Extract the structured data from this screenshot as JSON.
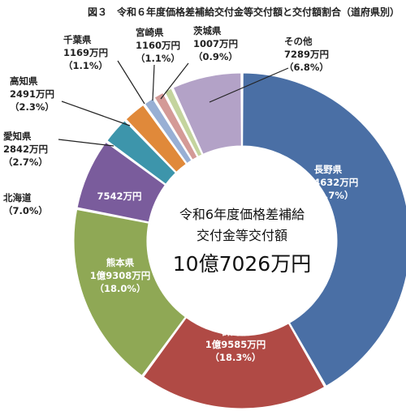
{
  "chart_data": {
    "type": "pie",
    "title": "図３　令和６年度価格差補給交付金等交付額と交付額割合（道府県別）",
    "center_label_line1": "令和6年度価格差補給",
    "center_label_line2": "交付金等交付額",
    "total": "10億7026万円",
    "slices": [
      {
        "name": "長野県",
        "amount": "4億4632万円",
        "percent_label": "（41.7%）",
        "value": 41.7,
        "color": "#4a6fa5"
      },
      {
        "name": "群馬県",
        "amount": "1億9585万円",
        "percent_label": "（18.3%）",
        "value": 18.3,
        "color": "#b04a45"
      },
      {
        "name": "熊本県",
        "amount": "1億9308万円",
        "percent_label": "（18.0%）",
        "value": 18.0,
        "color": "#8fa855"
      },
      {
        "name": "北海道",
        "amount": "7542万円",
        "percent_label": "（7.0%）",
        "value": 7.0,
        "color": "#7a5c9c"
      },
      {
        "name": "愛知県",
        "amount": "2842万円",
        "percent_label": "（2.7%）",
        "value": 2.7,
        "color": "#3d95ab"
      },
      {
        "name": "高知県",
        "amount": "2491万円",
        "percent_label": "（2.3%）",
        "value": 2.3,
        "color": "#e0893a"
      },
      {
        "name": "千葉県",
        "amount": "1169万円",
        "percent_label": "（1.1%）",
        "value": 1.1,
        "color": "#98afd4"
      },
      {
        "name": "宮崎県",
        "amount": "1160万円",
        "percent_label": "（1.1%）",
        "value": 1.1,
        "color": "#d49a97"
      },
      {
        "name": "茨城県",
        "amount": "1007万円",
        "percent_label": "（0.9%）",
        "value": 0.9,
        "color": "#c4d49e"
      },
      {
        "name": "その他",
        "amount": "7289万円",
        "percent_label": "（6.8%）",
        "value": 6.8,
        "color": "#b3a2c7"
      }
    ]
  }
}
